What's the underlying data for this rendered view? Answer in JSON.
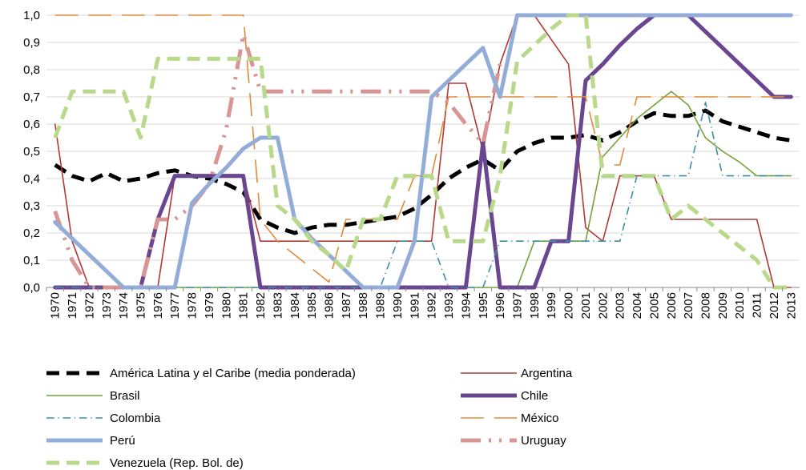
{
  "chart_data": {
    "type": "line",
    "title": "",
    "xlabel": "",
    "ylabel": "",
    "ylim": [
      0,
      1.0
    ],
    "yticks": [
      "0,0",
      "0,1",
      "0,2",
      "0,3",
      "0,4",
      "0,5",
      "0,6",
      "0,7",
      "0,8",
      "0,9",
      "1,0"
    ],
    "grid": true,
    "legend_position": "bottom",
    "x": [
      "1970",
      "1971",
      "1972",
      "1973",
      "1974",
      "1975",
      "1976",
      "1977",
      "1978",
      "1979",
      "1980",
      "1981",
      "1982",
      "1983",
      "1984",
      "1985",
      "1986",
      "1987",
      "1988",
      "1989",
      "1990",
      "1991",
      "1992",
      "1993",
      "1994",
      "1995",
      "1996",
      "1997",
      "1998",
      "1999",
      "2000",
      "2001",
      "2002",
      "2003",
      "2004",
      "2005",
      "2006",
      "2007",
      "2008",
      "2009",
      "2010",
      "2011",
      "2012",
      "2013"
    ],
    "series": [
      {
        "name": "América Latina y el Caribe (media ponderada)",
        "color": "#000000",
        "style": "dash",
        "width": 5,
        "values": [
          0.45,
          0.41,
          0.39,
          0.42,
          0.39,
          0.4,
          0.42,
          0.43,
          0.41,
          0.4,
          0.38,
          0.35,
          0.25,
          0.22,
          0.2,
          0.22,
          0.23,
          0.23,
          0.24,
          0.25,
          0.26,
          0.29,
          0.34,
          0.4,
          0.44,
          0.47,
          0.43,
          0.5,
          0.53,
          0.55,
          0.55,
          0.56,
          0.54,
          0.57,
          0.61,
          0.64,
          0.63,
          0.63,
          0.65,
          0.61,
          0.59,
          0.57,
          0.55,
          0.54
        ]
      },
      {
        "name": "Argentina",
        "color": "#b13a35",
        "style": "solid",
        "width": 1.6,
        "values": [
          0.6,
          0.17,
          0,
          0,
          0,
          0,
          0,
          0.41,
          0.41,
          0.41,
          0.41,
          0.41,
          0.17,
          0.17,
          0.17,
          0.17,
          0.17,
          0.17,
          0.17,
          0.17,
          0.17,
          0.17,
          0.17,
          0.75,
          0.75,
          0.5,
          0.82,
          1.0,
          1.0,
          0.91,
          0.82,
          0.22,
          0.17,
          0.41,
          0.41,
          0.41,
          0.25,
          0.25,
          0.25,
          0.25,
          0.25,
          0.25,
          0,
          0
        ]
      },
      {
        "name": "Brasil",
        "color": "#77a13a",
        "style": "solid",
        "width": 1.6,
        "values": [
          0,
          0,
          0,
          0,
          0,
          0,
          0,
          0,
          0,
          0,
          0,
          0,
          0,
          0,
          0,
          0,
          0,
          0,
          0,
          0,
          0,
          0,
          0,
          0,
          0,
          0,
          0,
          0,
          0.17,
          0.17,
          0.17,
          0.17,
          0.48,
          0.55,
          0.62,
          0.67,
          0.72,
          0.67,
          0.55,
          0.5,
          0.46,
          0.41,
          0.41,
          0.41
        ]
      },
      {
        "name": "Chile",
        "color": "#6a4590",
        "style": "solid",
        "width": 5,
        "values": [
          0,
          0,
          0,
          0,
          0,
          0,
          0.25,
          0.41,
          0.41,
          0.41,
          0.41,
          0.41,
          0,
          0,
          0,
          0,
          0,
          0,
          0,
          0,
          0,
          0,
          0,
          0,
          0,
          0.53,
          0,
          0,
          0,
          0.17,
          0.17,
          0.76,
          0.82,
          0.89,
          0.95,
          1.0,
          1.0,
          1.0,
          0.94,
          0.88,
          0.82,
          0.76,
          0.7,
          0.7
        ]
      },
      {
        "name": "Colombia",
        "color": "#3a8fa8",
        "style": "dashdot",
        "width": 1.6,
        "values": [
          0,
          0,
          0,
          0,
          0,
          0,
          0,
          0,
          0,
          0,
          0,
          0,
          0,
          0,
          0,
          0,
          0,
          0,
          0,
          0,
          0.17,
          0.17,
          0.17,
          0,
          0,
          0,
          0.17,
          0.17,
          0.17,
          0.17,
          0.17,
          0.17,
          0.17,
          0.17,
          0.41,
          0.41,
          0.41,
          0.41,
          0.68,
          0.41,
          0.41,
          0.41,
          0.41,
          0.41
        ]
      },
      {
        "name": "México",
        "color": "#e08a3a",
        "style": "longdash",
        "width": 1.6,
        "values": [
          1.0,
          1.0,
          1.0,
          1.0,
          1.0,
          1.0,
          1.0,
          1.0,
          1.0,
          1.0,
          1.0,
          1.0,
          0.25,
          0.17,
          0.12,
          0.07,
          0.02,
          0.25,
          0.25,
          0.25,
          0.25,
          0.41,
          0.41,
          0.7,
          0.7,
          0.7,
          0.7,
          0.7,
          0.7,
          0.7,
          0.7,
          0.7,
          0.45,
          0.45,
          0.7,
          0.7,
          0.7,
          0.7,
          0.7,
          0.7,
          0.7,
          0.7,
          0.7,
          0.7
        ]
      },
      {
        "name": "Uruguay",
        "color": "#d99494",
        "style": "dashdotdot",
        "width": 5,
        "values": [
          0.28,
          0.1,
          0,
          0,
          0,
          0,
          0.25,
          0.25,
          0.3,
          0.38,
          0.58,
          0.93,
          0.72,
          0.72,
          0.72,
          0.72,
          0.72,
          0.72,
          0.72,
          0.72,
          0.72,
          0.72,
          0.72,
          0.68,
          0.6,
          0.53,
          0.82,
          null,
          null,
          null,
          null,
          null,
          null,
          null,
          null,
          null,
          null,
          null,
          null,
          null,
          null,
          null,
          null,
          null
        ]
      },
      {
        "name": "Perú",
        "color": "#93add8",
        "style": "solid",
        "width": 5,
        "values": [
          0.24,
          0.18,
          0.12,
          0.06,
          0,
          0,
          0,
          0,
          0.31,
          0.38,
          0.44,
          0.51,
          0.55,
          0.55,
          0.25,
          0.18,
          0.12,
          0.06,
          0,
          0,
          0,
          0.17,
          0.7,
          0.76,
          0.82,
          0.88,
          0.7,
          1.0,
          1.0,
          1.0,
          1.0,
          1.0,
          1.0,
          1.0,
          1.0,
          1.0,
          1.0,
          1.0,
          1.0,
          1.0,
          1.0,
          1.0,
          1.0,
          1.0
        ]
      },
      {
        "name": "Venezuela (Rep. Bol. de)",
        "color": "#b9d98a",
        "style": "dash",
        "width": 5,
        "values": [
          0.55,
          0.72,
          0.72,
          0.72,
          0.72,
          0.55,
          0.84,
          0.84,
          0.84,
          0.84,
          0.84,
          0.84,
          0.84,
          0.3,
          0.25,
          0.17,
          0.12,
          0.06,
          0.25,
          0.25,
          0.41,
          0.41,
          0.41,
          0.17,
          0.17,
          0.17,
          0.41,
          0.83,
          0.89,
          0.95,
          1.0,
          1.0,
          0.41,
          0.41,
          0.41,
          0.41,
          0.25,
          0.3,
          0.25,
          0.2,
          0.15,
          0.1,
          0,
          0
        ]
      }
    ],
    "legend_order": [
      "América Latina y el Caribe (media ponderada)",
      "Argentina",
      "Brasil",
      "Chile",
      "Colombia",
      "México",
      "Perú",
      "Uruguay",
      "Venezuela (Rep. Bol. de)"
    ]
  }
}
